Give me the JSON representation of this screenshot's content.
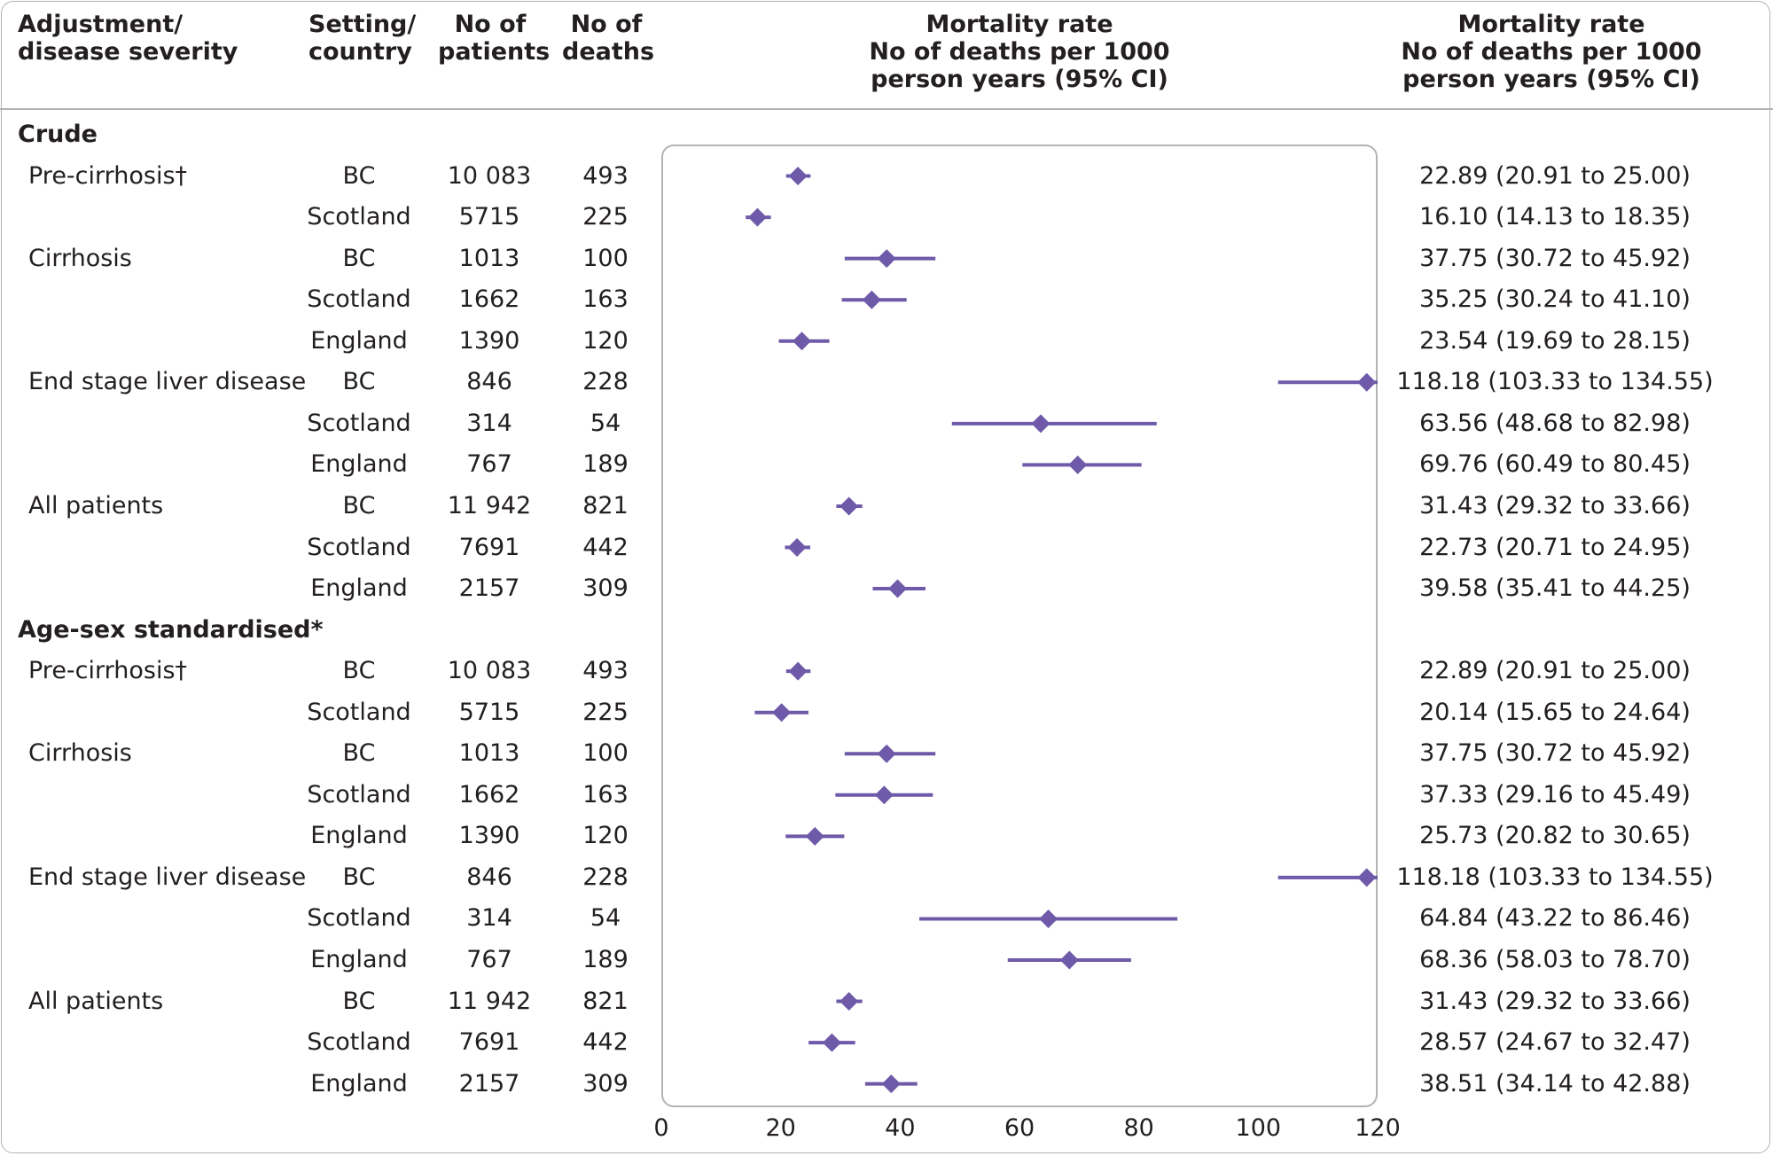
{
  "headers": {
    "adjustment": [
      "Adjustment/",
      "disease severity"
    ],
    "setting": [
      "Setting/",
      "country"
    ],
    "patients": [
      "No of",
      "patients"
    ],
    "deaths": [
      "No of",
      "deaths"
    ],
    "plot": [
      "Mortality rate",
      "No of deaths per 1000",
      "person years (95% CI)"
    ],
    "ci": [
      "Mortality rate",
      "No of deaths per 1000",
      "person years (95% CI)"
    ]
  },
  "sections": [
    {
      "title": "Crude",
      "rows": [
        {
          "label": "Pre-cirrhosis†",
          "setting": "BC",
          "patients": "10 083",
          "deaths": "493",
          "rate": 22.89,
          "lo": 20.91,
          "hi": 25.0,
          "ci_text": "22.89 (20.91 to 25.00)"
        },
        {
          "label": "",
          "setting": "Scotland",
          "patients": "5715",
          "deaths": "225",
          "rate": 16.1,
          "lo": 14.13,
          "hi": 18.35,
          "ci_text": "16.10 (14.13 to 18.35)"
        },
        {
          "label": "Cirrhosis",
          "setting": "BC",
          "patients": "1013",
          "deaths": "100",
          "rate": 37.75,
          "lo": 30.72,
          "hi": 45.92,
          "ci_text": "37.75 (30.72 to 45.92)"
        },
        {
          "label": "",
          "setting": "Scotland",
          "patients": "1662",
          "deaths": "163",
          "rate": 35.25,
          "lo": 30.24,
          "hi": 41.1,
          "ci_text": "35.25 (30.24 to 41.10)"
        },
        {
          "label": "",
          "setting": "England",
          "patients": "1390",
          "deaths": "120",
          "rate": 23.54,
          "lo": 19.69,
          "hi": 28.15,
          "ci_text": "23.54 (19.69 to 28.15)"
        },
        {
          "label": "End stage liver disease",
          "setting": "BC",
          "patients": "846",
          "deaths": "228",
          "rate": 118.18,
          "lo": 103.33,
          "hi": 134.55,
          "ci_text": "118.18 (103.33 to 134.55)"
        },
        {
          "label": "",
          "setting": "Scotland",
          "patients": "314",
          "deaths": "54",
          "rate": 63.56,
          "lo": 48.68,
          "hi": 82.98,
          "ci_text": "63.56 (48.68 to 82.98)"
        },
        {
          "label": "",
          "setting": "England",
          "patients": "767",
          "deaths": "189",
          "rate": 69.76,
          "lo": 60.49,
          "hi": 80.45,
          "ci_text": "69.76 (60.49 to 80.45)"
        },
        {
          "label": "All patients",
          "setting": "BC",
          "patients": "11 942",
          "deaths": "821",
          "rate": 31.43,
          "lo": 29.32,
          "hi": 33.66,
          "ci_text": "31.43 (29.32 to 33.66)"
        },
        {
          "label": "",
          "setting": "Scotland",
          "patients": "7691",
          "deaths": "442",
          "rate": 22.73,
          "lo": 20.71,
          "hi": 24.95,
          "ci_text": "22.73 (20.71 to 24.95)"
        },
        {
          "label": "",
          "setting": "England",
          "patients": "2157",
          "deaths": "309",
          "rate": 39.58,
          "lo": 35.41,
          "hi": 44.25,
          "ci_text": "39.58 (35.41 to 44.25)"
        }
      ]
    },
    {
      "title": "Age-sex standardised*",
      "rows": [
        {
          "label": "Pre-cirrhosis†",
          "setting": "BC",
          "patients": "10 083",
          "deaths": "493",
          "rate": 22.89,
          "lo": 20.91,
          "hi": 25.0,
          "ci_text": "22.89 (20.91 to 25.00)"
        },
        {
          "label": "",
          "setting": "Scotland",
          "patients": "5715",
          "deaths": "225",
          "rate": 20.14,
          "lo": 15.65,
          "hi": 24.64,
          "ci_text": "20.14 (15.65 to 24.64)"
        },
        {
          "label": "Cirrhosis",
          "setting": "BC",
          "patients": "1013",
          "deaths": "100",
          "rate": 37.75,
          "lo": 30.72,
          "hi": 45.92,
          "ci_text": "37.75 (30.72 to 45.92)"
        },
        {
          "label": "",
          "setting": "Scotland",
          "patients": "1662",
          "deaths": "163",
          "rate": 37.33,
          "lo": 29.16,
          "hi": 45.49,
          "ci_text": "37.33 (29.16 to 45.49)"
        },
        {
          "label": "",
          "setting": "England",
          "patients": "1390",
          "deaths": "120",
          "rate": 25.73,
          "lo": 20.82,
          "hi": 30.65,
          "ci_text": "25.73 (20.82 to 30.65)"
        },
        {
          "label": "End stage liver disease",
          "setting": "BC",
          "patients": "846",
          "deaths": "228",
          "rate": 118.18,
          "lo": 103.33,
          "hi": 134.55,
          "ci_text": "118.18 (103.33 to 134.55)"
        },
        {
          "label": "",
          "setting": "Scotland",
          "patients": "314",
          "deaths": "54",
          "rate": 64.84,
          "lo": 43.22,
          "hi": 86.46,
          "ci_text": "64.84 (43.22 to 86.46)"
        },
        {
          "label": "",
          "setting": "England",
          "patients": "767",
          "deaths": "189",
          "rate": 68.36,
          "lo": 58.03,
          "hi": 78.7,
          "ci_text": "68.36 (58.03 to 78.70)"
        },
        {
          "label": "All patients",
          "setting": "BC",
          "patients": "11 942",
          "deaths": "821",
          "rate": 31.43,
          "lo": 29.32,
          "hi": 33.66,
          "ci_text": "31.43 (29.32 to 33.66)"
        },
        {
          "label": "",
          "setting": "Scotland",
          "patients": "7691",
          "deaths": "442",
          "rate": 28.57,
          "lo": 24.67,
          "hi": 32.47,
          "ci_text": "28.57 (24.67 to 32.47)"
        },
        {
          "label": "",
          "setting": "England",
          "patients": "2157",
          "deaths": "309",
          "rate": 38.51,
          "lo": 34.14,
          "hi": 42.88,
          "ci_text": "38.51 (34.14 to 42.88)"
        }
      ]
    }
  ],
  "chart_data": {
    "type": "forest",
    "xlim": [
      0,
      120
    ],
    "xticks": [
      0,
      20,
      40,
      60,
      80,
      100,
      120
    ],
    "marker_color": "#6e5aa8",
    "clipped_upper": true
  }
}
